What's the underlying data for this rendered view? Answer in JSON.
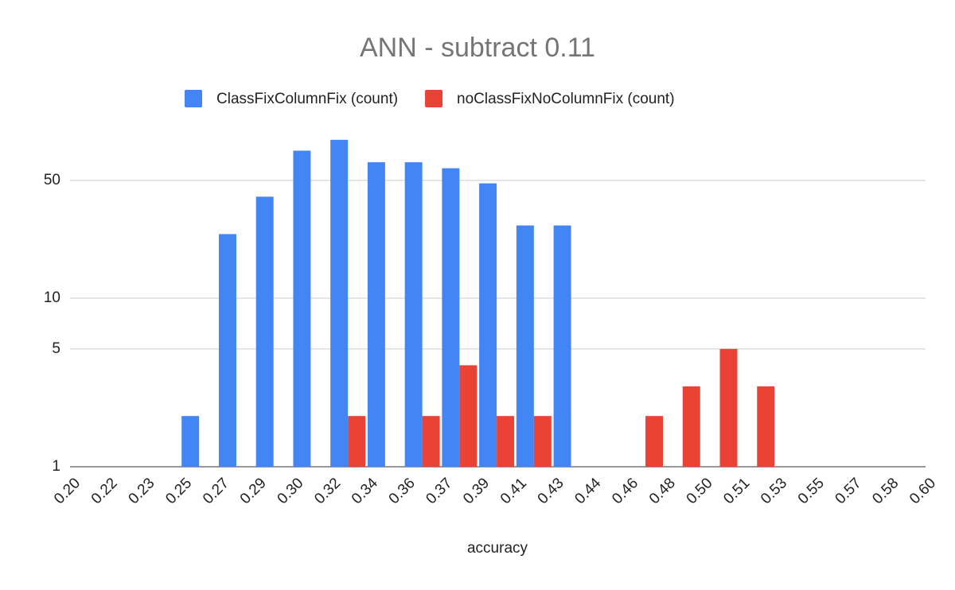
{
  "chart_data": {
    "type": "histogram",
    "title": "ANN - subtract 0.11",
    "x_label": "accuracy",
    "bins": [
      0.2,
      0.21739,
      0.23478,
      0.25217,
      0.26957,
      0.28696,
      0.30435,
      0.32174,
      0.33913,
      0.35652,
      0.37391,
      0.3913,
      0.4087,
      0.42609,
      0.44348,
      0.46087,
      0.47826,
      0.49565,
      0.51304,
      0.53043,
      0.54783,
      0.56522,
      0.58261,
      0.6
    ],
    "series": [
      {
        "name": "ClassFixColumnFix (count)",
        "color": "#4285f4",
        "values": [
          0,
          0,
          0,
          2,
          24,
          40,
          75,
          87,
          64,
          64,
          59,
          48,
          27,
          27,
          0,
          0,
          0,
          0,
          0,
          0,
          0,
          0,
          0
        ]
      },
      {
        "name": "noClassFixNoColumnFix (count)",
        "color": "#ea4335",
        "values": [
          0,
          0,
          0,
          0,
          0,
          0,
          0,
          2,
          0,
          2,
          4,
          2,
          2,
          0,
          0,
          2,
          3,
          5,
          3,
          0,
          0,
          0,
          0
        ]
      }
    ],
    "xlim": [
      0.2,
      0.6
    ],
    "xticks": [
      {
        "value": 0.2,
        "label": "0.20"
      },
      {
        "value": 0.21739,
        "label": "0.22"
      },
      {
        "value": 0.23478,
        "label": "0.23"
      },
      {
        "value": 0.25217,
        "label": "0.25"
      },
      {
        "value": 0.26957,
        "label": "0.27"
      },
      {
        "value": 0.28696,
        "label": "0.29"
      },
      {
        "value": 0.30435,
        "label": "0.30"
      },
      {
        "value": 0.32174,
        "label": "0.32"
      },
      {
        "value": 0.33913,
        "label": "0.34"
      },
      {
        "value": 0.35652,
        "label": "0.36"
      },
      {
        "value": 0.37391,
        "label": "0.37"
      },
      {
        "value": 0.3913,
        "label": "0.39"
      },
      {
        "value": 0.4087,
        "label": "0.41"
      },
      {
        "value": 0.42609,
        "label": "0.43"
      },
      {
        "value": 0.44348,
        "label": "0.44"
      },
      {
        "value": 0.46087,
        "label": "0.46"
      },
      {
        "value": 0.47826,
        "label": "0.48"
      },
      {
        "value": 0.49565,
        "label": "0.50"
      },
      {
        "value": 0.51304,
        "label": "0.51"
      },
      {
        "value": 0.53043,
        "label": "0.53"
      },
      {
        "value": 0.54783,
        "label": "0.55"
      },
      {
        "value": 0.56522,
        "label": "0.57"
      },
      {
        "value": 0.58261,
        "label": "0.58"
      },
      {
        "value": 0.6,
        "label": "0.60"
      }
    ],
    "ylim": [
      1,
      100
    ],
    "yticks": [
      1,
      5,
      10,
      50
    ],
    "log_y": true,
    "grid": true,
    "legend": "top"
  }
}
